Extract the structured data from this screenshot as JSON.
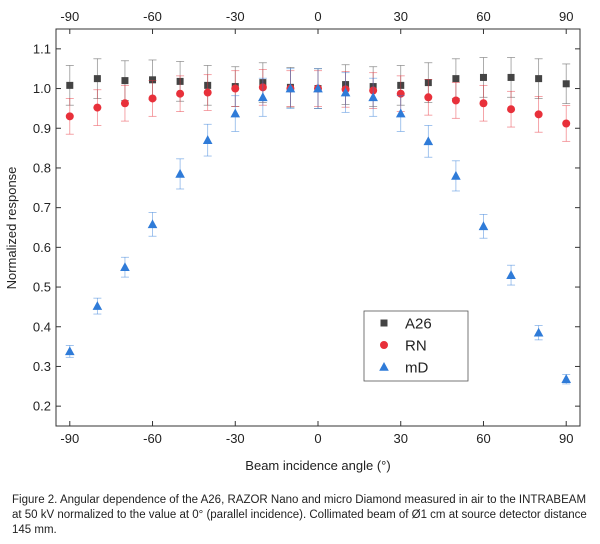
{
  "chart_data": {
    "type": "scatter",
    "xlabel": "Beam incidence angle (°)",
    "ylabel": "Normalized response",
    "xlim": [
      -95,
      95
    ],
    "ylim": [
      0.15,
      1.15
    ],
    "xticks": [
      -90,
      -60,
      -30,
      0,
      30,
      60,
      90
    ],
    "yticks": [
      0.2,
      0.3,
      0.4,
      0.5,
      0.6,
      0.7,
      0.8,
      0.9,
      1.0,
      1.1
    ],
    "ytick_labels": [
      "0.2",
      "0.3",
      "0.4",
      "0.5",
      "0.6",
      "0.7",
      "0.8",
      "0.9",
      "1.0",
      "1.1"
    ],
    "top_axis_ticks": true,
    "grid": false,
    "legend_position": "lower-right",
    "x": [
      -90,
      -80,
      -70,
      -60,
      -50,
      -40,
      -30,
      -20,
      -10,
      0,
      10,
      20,
      30,
      40,
      50,
      60,
      70,
      80,
      90
    ],
    "series": [
      {
        "name": "A26",
        "marker": "square",
        "color": "#444444",
        "values": [
          1.008,
          1.025,
          1.02,
          1.022,
          1.018,
          1.008,
          1.005,
          1.015,
          1.003,
          1.0,
          1.01,
          1.005,
          1.008,
          1.015,
          1.025,
          1.028,
          1.028,
          1.025,
          1.012
        ],
        "errors": [
          0.05,
          0.05,
          0.05,
          0.05,
          0.05,
          0.05,
          0.05,
          0.05,
          0.05,
          0.05,
          0.05,
          0.05,
          0.05,
          0.05,
          0.05,
          0.05,
          0.05,
          0.05,
          0.05
        ]
      },
      {
        "name": "RN",
        "marker": "circle",
        "color": "#e8303a",
        "values": [
          0.93,
          0.952,
          0.963,
          0.975,
          0.987,
          0.99,
          1.0,
          1.003,
          1.0,
          1.0,
          0.998,
          0.995,
          0.987,
          0.978,
          0.97,
          0.963,
          0.948,
          0.935,
          0.912
        ],
        "errors": [
          0.045,
          0.045,
          0.045,
          0.045,
          0.045,
          0.045,
          0.045,
          0.045,
          0.045,
          0.045,
          0.045,
          0.045,
          0.045,
          0.045,
          0.045,
          0.045,
          0.045,
          0.045,
          0.045
        ]
      },
      {
        "name": "mD",
        "marker": "triangle",
        "color": "#2f7bd8",
        "values": [
          0.338,
          0.452,
          0.55,
          0.658,
          0.785,
          0.87,
          0.937,
          0.978,
          1.0,
          1.0,
          0.99,
          0.978,
          0.937,
          0.867,
          0.78,
          0.653,
          0.53,
          0.385,
          0.268
        ],
        "errors": [
          0.015,
          0.02,
          0.025,
          0.03,
          0.038,
          0.04,
          0.045,
          0.048,
          0.05,
          0.05,
          0.05,
          0.048,
          0.045,
          0.04,
          0.038,
          0.03,
          0.025,
          0.018,
          0.012
        ]
      }
    ]
  },
  "caption": "Figure 2. Angular dependence of the A26, RAZOR Nano and micro Diamond measured in air to the INTRABEAM at 50 kV normalized to the value at 0° (parallel incidence). Collimated beam of Ø1 cm at source detector distance 145 mm."
}
